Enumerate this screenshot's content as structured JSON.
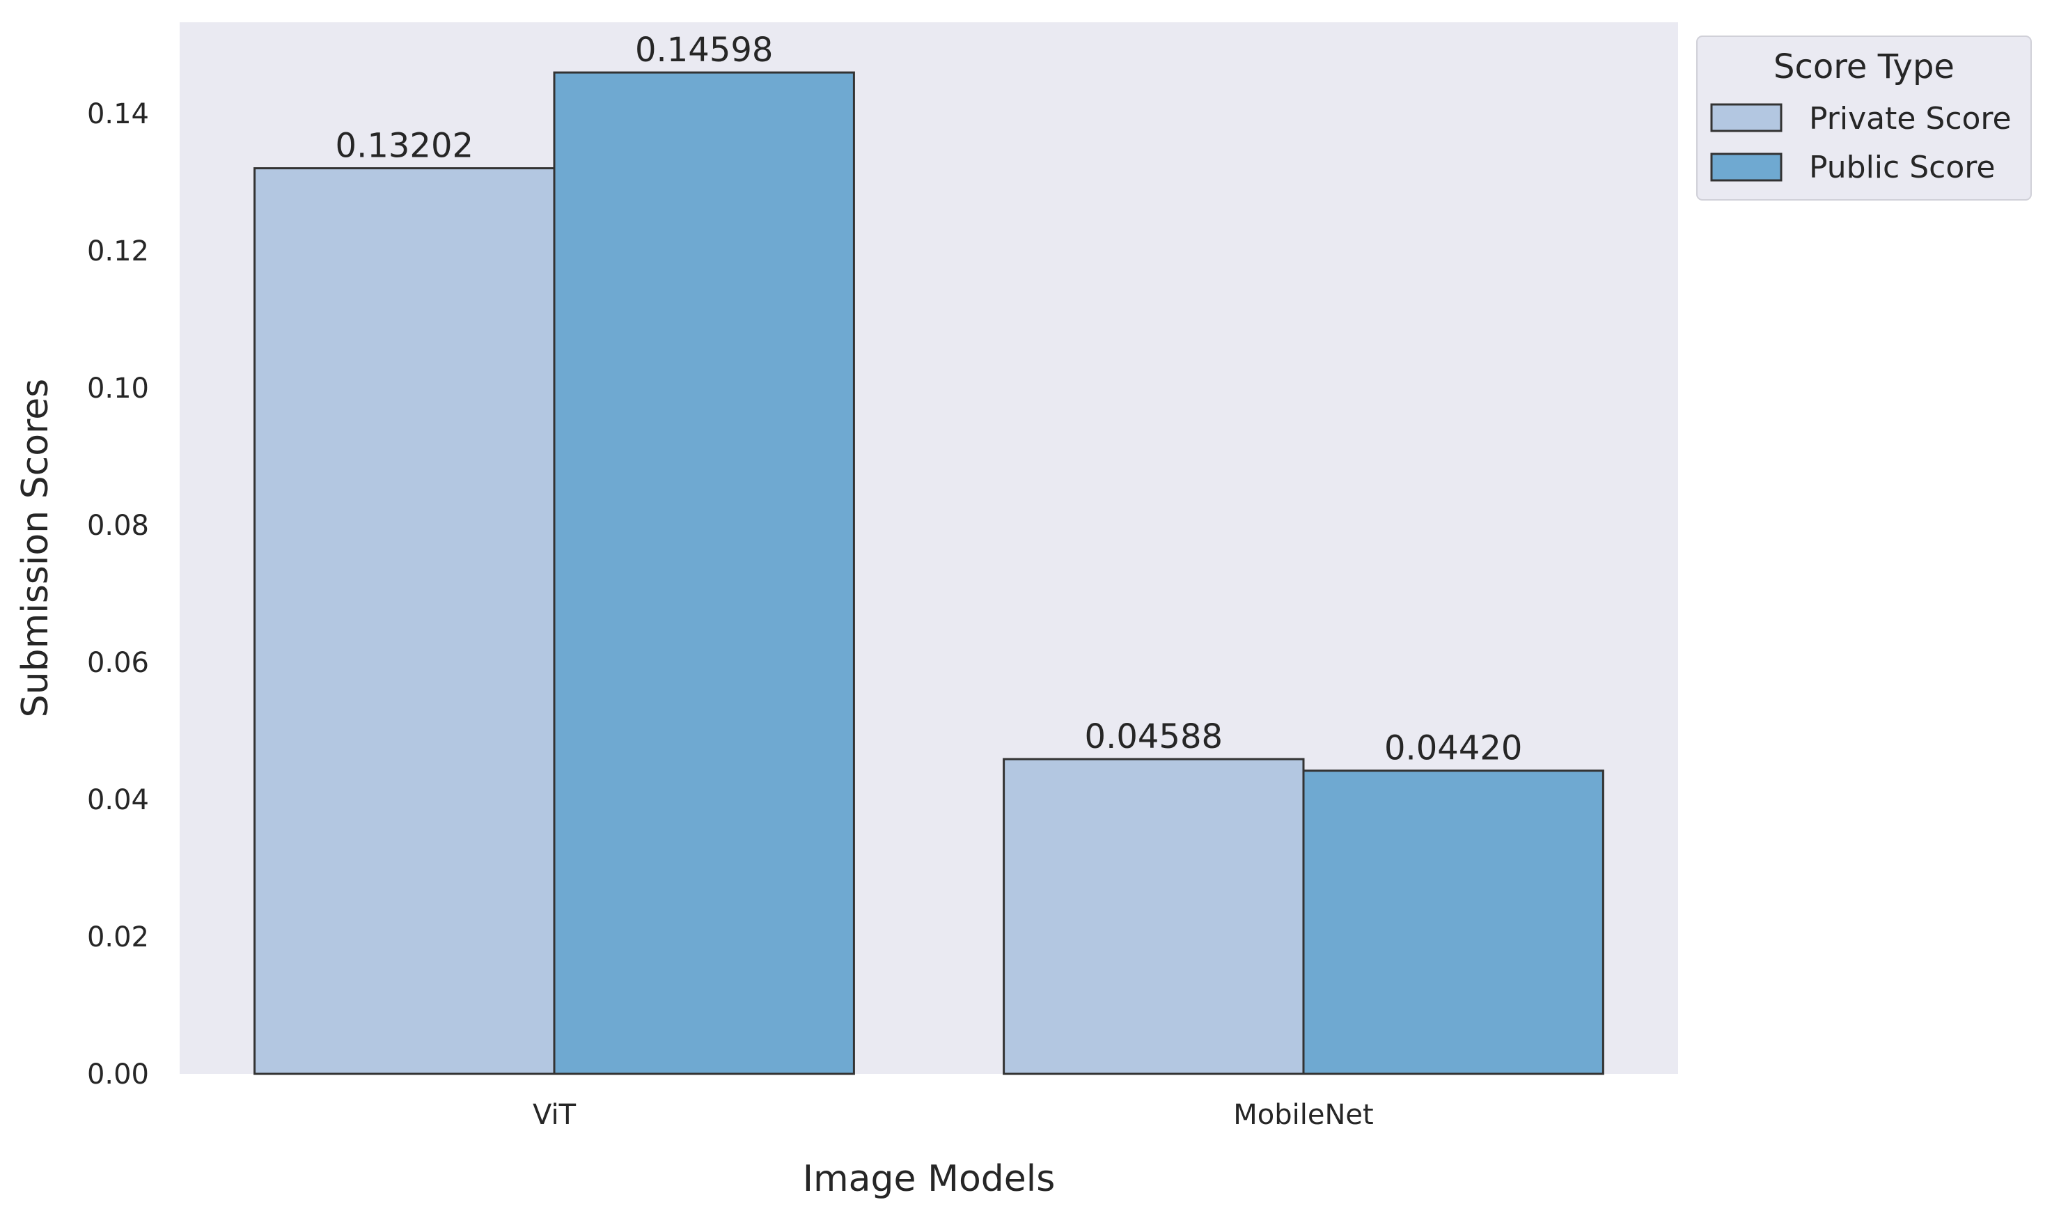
{
  "chart_data": {
    "type": "bar",
    "xlabel": "Image Models",
    "ylabel": "Submission Scores",
    "categories": [
      "ViT",
      "MobileNet"
    ],
    "series": [
      {
        "name": "Private Score",
        "values": [
          0.13202,
          0.04588
        ],
        "labels": [
          "0.13202",
          "0.04588"
        ],
        "color": "#b3c7e1"
      },
      {
        "name": "Public Score",
        "values": [
          0.14598,
          0.0442
        ],
        "labels": [
          "0.14598",
          "0.04420"
        ],
        "color": "#6fa9d1"
      }
    ],
    "ylim": [
      0,
      0.1533
    ],
    "yticks": [
      0.0,
      0.02,
      0.04,
      0.06,
      0.08,
      0.1,
      0.12,
      0.14
    ],
    "ytick_labels": [
      "0.00",
      "0.02",
      "0.04",
      "0.06",
      "0.08",
      "0.10",
      "0.12",
      "0.14"
    ],
    "grid": false,
    "legend": {
      "title": "Score Type",
      "placement": "outside-top-right"
    },
    "colors": {
      "plot_background": "#eaeaf2",
      "bar_edge": "#333333",
      "text": "#262626"
    }
  }
}
